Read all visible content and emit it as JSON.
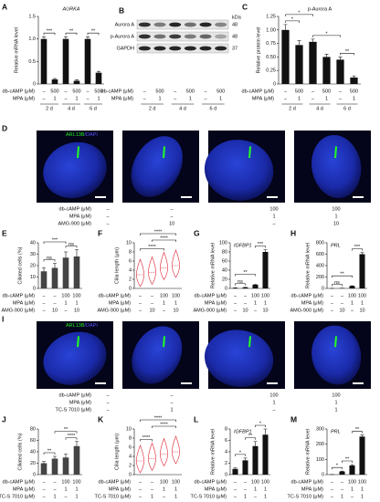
{
  "panel_a": {
    "label": "A",
    "type": "bar",
    "title": "AURKA",
    "ylabel": "Relative mRNA level",
    "ylim": [
      0,
      1.5
    ],
    "yticks": [
      0,
      0.5,
      {
        "value": 1,
        "label": "1.0"
      },
      1.5
    ],
    "values": [
      1.0,
      0.1,
      1.0,
      0.07,
      1.0,
      0.25
    ],
    "errors": [
      0.05,
      0.02,
      0.05,
      0.02,
      0.05,
      0.03
    ],
    "significance": [
      "***",
      "**",
      "**"
    ],
    "conditions": [
      {
        "name": "db-cAMP (μM)",
        "values": [
          "–",
          "500",
          "–",
          "500",
          "–",
          "500"
        ]
      },
      {
        "name": "MPA (μM)",
        "values": [
          "–",
          "1",
          "–",
          "1",
          "–",
          "1"
        ]
      }
    ],
    "groups": [
      "2 d",
      "4 d",
      "6 d"
    ]
  },
  "panel_b": {
    "label": "B",
    "type": "blot",
    "kda_label": "kDa",
    "bands": [
      {
        "name": "Aurora A",
        "kda": 48
      },
      {
        "name": "p-Aurora A",
        "kda": 48
      },
      {
        "name": "GAPDH",
        "kda": 37
      }
    ],
    "conditions": [
      {
        "name": "db-cAMP (μM)",
        "values": [
          "–",
          "500",
          "–",
          "500",
          "–",
          "500"
        ]
      },
      {
        "name": "MPA (μM)",
        "values": [
          "–",
          "1",
          "–",
          "1",
          "–",
          "1"
        ]
      }
    ],
    "groups": [
      "2 d",
      "4 d",
      "6 d"
    ]
  },
  "panel_c": {
    "label": "C",
    "type": "bar",
    "title": "p-Aurora A",
    "ylabel": "Relative protein level",
    "ylim": [
      0,
      1.25
    ],
    "yticks": [
      0,
      0.25,
      {
        "value": 0.5,
        "label": "0.50"
      },
      0.75,
      {
        "value": 1,
        "label": "1.00"
      },
      1.25
    ],
    "values": [
      1.0,
      0.72,
      0.78,
      0.5,
      0.45,
      0.12
    ],
    "errors": [
      0.1,
      0.08,
      0.05,
      0.05,
      0.05,
      0.03
    ],
    "significance": [
      "*",
      "*",
      "*",
      "**"
    ],
    "conditions": [
      {
        "name": "db-cAMP (μM)",
        "values": [
          "–",
          "500",
          "–",
          "500",
          "–",
          "500"
        ]
      },
      {
        "name": "MPA (μM)",
        "values": [
          "–",
          "1",
          "–",
          "1",
          "–",
          "1"
        ]
      }
    ],
    "groups": [
      "2 d",
      "4 d",
      "6 d"
    ]
  },
  "panel_d": {
    "label": "D",
    "type": "images",
    "stain_green": "ARL13B",
    "stain_blue": "/DAPI",
    "conditions": [
      {
        "name": "db-cAMP (μM)",
        "values": [
          "–",
          "–",
          "100",
          "100"
        ]
      },
      {
        "name": "MPA (μM)",
        "values": [
          "–",
          "–",
          "1",
          "1"
        ]
      },
      {
        "name": "AMG-900 (μM)",
        "values": [
          "–",
          "10",
          "–",
          "10"
        ]
      }
    ]
  },
  "panel_e": {
    "label": "E",
    "type": "bar",
    "ylabel": "Ciliated cells (%)",
    "ylim": [
      0,
      40
    ],
    "yticks": [
      0,
      10,
      20,
      30,
      40
    ],
    "values": [
      15,
      18,
      27,
      28
    ],
    "errors": [
      3,
      4,
      5,
      6
    ],
    "significance": [
      "ns",
      "***",
      "ns"
    ],
    "conditions": [
      {
        "name": "db-cAMP (μM)",
        "values": [
          "–",
          "–",
          "100",
          "100"
        ]
      },
      {
        "name": "MPA (μM)",
        "values": [
          "–",
          "–",
          "1",
          "1"
        ]
      },
      {
        "name": "AMG-900 (μM)",
        "values": [
          "–",
          "10",
          "–",
          "10"
        ]
      }
    ]
  },
  "panel_f": {
    "label": "F",
    "type": "violin",
    "ylabel": "Cilia length (μm)",
    "ylim": [
      0,
      10
    ],
    "yticks": [
      0,
      2,
      4,
      6,
      8,
      10
    ],
    "values": [
      3,
      3.5,
      4.5,
      5
    ],
    "significance": [
      "****",
      "****",
      "****"
    ],
    "conditions": [
      {
        "name": "db-cAMP (μM)",
        "values": [
          "–",
          "–",
          "100",
          "100"
        ]
      },
      {
        "name": "MPA (μM)",
        "values": [
          "–",
          "–",
          "1",
          "1"
        ]
      },
      {
        "name": "AMG-900 (μM)",
        "values": [
          "–",
          "10",
          "–",
          "10"
        ]
      }
    ]
  },
  "panel_g": {
    "label": "G",
    "type": "bar",
    "title": "IGFBP1",
    "ylabel": "Relative mRNA level",
    "ylim": [
      0,
      100
    ],
    "yticks": [
      0,
      20,
      40,
      60,
      80,
      100
    ],
    "values": [
      1,
      2,
      8,
      80
    ],
    "errors": [
      0.3,
      0.5,
      1,
      5
    ],
    "significance": [
      "ns",
      "**",
      "***"
    ],
    "conditions": [
      {
        "name": "db-cAMP (μM)",
        "values": [
          "–",
          "–",
          "100",
          "100"
        ]
      },
      {
        "name": "MPA (μM)",
        "values": [
          "–",
          "–",
          "1",
          "1"
        ]
      },
      {
        "name": "AMG-900 (μM)",
        "values": [
          "–",
          "10",
          "–",
          "10"
        ]
      }
    ]
  },
  "panel_h": {
    "label": "H",
    "type": "bar",
    "title": "PRL",
    "ylabel": "Relative mRNA level",
    "ylim": [
      0,
      800
    ],
    "yticks": [
      0,
      200,
      400,
      600,
      800
    ],
    "values": [
      1,
      5,
      40,
      600
    ],
    "errors": [
      0.3,
      1,
      5,
      30
    ],
    "significance": [
      "ns",
      "**",
      "***"
    ],
    "conditions": [
      {
        "name": "db-cAMP (μM)",
        "values": [
          "–",
          "–",
          "100",
          "100"
        ]
      },
      {
        "name": "MPA (μM)",
        "values": [
          "–",
          "–",
          "1",
          "1"
        ]
      },
      {
        "name": "AMG-900 (μM)",
        "values": [
          "–",
          "10",
          "–",
          "10"
        ]
      }
    ]
  },
  "panel_i": {
    "label": "I",
    "type": "images",
    "stain_green": "ARL13B",
    "stain_blue": "/DAPI",
    "conditions": [
      {
        "name": "db-cAMP (μM)",
        "values": [
          "–",
          "–",
          "100",
          "100"
        ]
      },
      {
        "name": "MPA (μM)",
        "values": [
          "–",
          "–",
          "1",
          "1"
        ]
      },
      {
        "name": "TC-S 7010 (μM)",
        "values": [
          "–",
          "1",
          "–",
          "1"
        ]
      }
    ]
  },
  "panel_j": {
    "label": "J",
    "type": "bar",
    "ylabel": "Ciliated cells (%)",
    "ylim": [
      0,
      80
    ],
    "yticks": [
      0,
      20,
      40,
      60,
      80
    ],
    "values": [
      20,
      28,
      30,
      50
    ],
    "errors": [
      3,
      4,
      6,
      8
    ],
    "significance": [
      "**",
      "**",
      "****"
    ],
    "conditions": [
      {
        "name": "db-cAMP (μM)",
        "values": [
          "–",
          "–",
          "100",
          "100"
        ]
      },
      {
        "name": "MPA (μM)",
        "values": [
          "–",
          "–",
          "1",
          "1"
        ]
      },
      {
        "name": "TC-S 7010 (μM)",
        "values": [
          "–",
          "1",
          "–",
          "1"
        ]
      }
    ]
  },
  "panel_k": {
    "label": "K",
    "type": "violin",
    "ylabel": "Cilia length (μm)",
    "ylim": [
      0,
      10
    ],
    "yticks": [
      0,
      2,
      4,
      6,
      8,
      10
    ],
    "values": [
      3,
      3.5,
      4.5,
      5
    ],
    "significance": [
      "****",
      "****",
      "****"
    ],
    "conditions": [
      {
        "name": "db-cAMP (μM)",
        "values": [
          "–",
          "–",
          "100",
          "100"
        ]
      },
      {
        "name": "MPA (μM)",
        "values": [
          "–",
          "–",
          "1",
          "1"
        ]
      },
      {
        "name": "TC-S 7010 (μM)",
        "values": [
          "–",
          "1",
          "–",
          "1"
        ]
      }
    ]
  },
  "panel_l": {
    "label": "L",
    "type": "bar",
    "title": "IGFBP1",
    "ylabel": "Relative mRNA level",
    "ylim": [
      0,
      8
    ],
    "yticks": [
      0,
      2,
      4,
      6,
      8
    ],
    "values": [
      1,
      2.5,
      5,
      7
    ],
    "errors": [
      0.2,
      0.4,
      0.8,
      1
    ],
    "significance": [
      "*",
      "**",
      "*"
    ],
    "conditions": [
      {
        "name": "db-cAMP (μM)",
        "values": [
          "–",
          "–",
          "100",
          "100"
        ]
      },
      {
        "name": "MPA (μM)",
        "values": [
          "–",
          "–",
          "1",
          "1"
        ]
      },
      {
        "name": "TC-S 7010 (μM)",
        "values": [
          "–",
          "1",
          "–",
          "1"
        ]
      }
    ]
  },
  "panel_m": {
    "label": "M",
    "type": "bar",
    "title": "PRL",
    "ylabel": "Relative mRNA level",
    "ylim": [
      0,
      300
    ],
    "yticks": [
      0,
      100,
      200,
      300
    ],
    "values": [
      1,
      20,
      60,
      250
    ],
    "errors": [
      0.2,
      3,
      6,
      10
    ],
    "significance": [
      "*",
      "**",
      "**"
    ],
    "conditions": [
      {
        "name": "db-cAMP (μM)",
        "values": [
          "–",
          "–",
          "100",
          "100"
        ]
      },
      {
        "name": "MPA (μM)",
        "values": [
          "–",
          "–",
          "1",
          "1"
        ]
      },
      {
        "name": "TC-S 7010 (μM)",
        "values": [
          "–",
          "1",
          "–",
          "1"
        ]
      }
    ]
  }
}
